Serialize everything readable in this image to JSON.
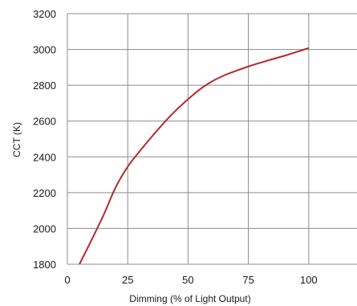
{
  "chart_data": {
    "type": "line",
    "title": "",
    "xlabel": "Dimming (% of Light Output)",
    "ylabel": "CCT (K)",
    "xlim": [
      0,
      120
    ],
    "ylim": [
      1800,
      3200
    ],
    "x_ticks": [
      0,
      25,
      50,
      75,
      100
    ],
    "y_ticks": [
      1800,
      2000,
      2200,
      2400,
      2600,
      2800,
      3000,
      3200
    ],
    "grid": true,
    "legend": "none",
    "series": [
      {
        "color": "#b5282e",
        "x": [
          5,
          10,
          15,
          20,
          25,
          30,
          35,
          40,
          45,
          50,
          55,
          60,
          65,
          70,
          75,
          80,
          85,
          90,
          95,
          100
        ],
        "y": [
          1800,
          1935,
          2075,
          2230,
          2345,
          2432,
          2513,
          2590,
          2660,
          2722,
          2778,
          2822,
          2855,
          2881,
          2905,
          2926,
          2946,
          2965,
          2986,
          3008
        ]
      }
    ]
  },
  "colors": {
    "line": "#b5282e",
    "ylabel": "#c0282e",
    "grid": "#8c8c8c",
    "text": "#1a1a1a"
  }
}
